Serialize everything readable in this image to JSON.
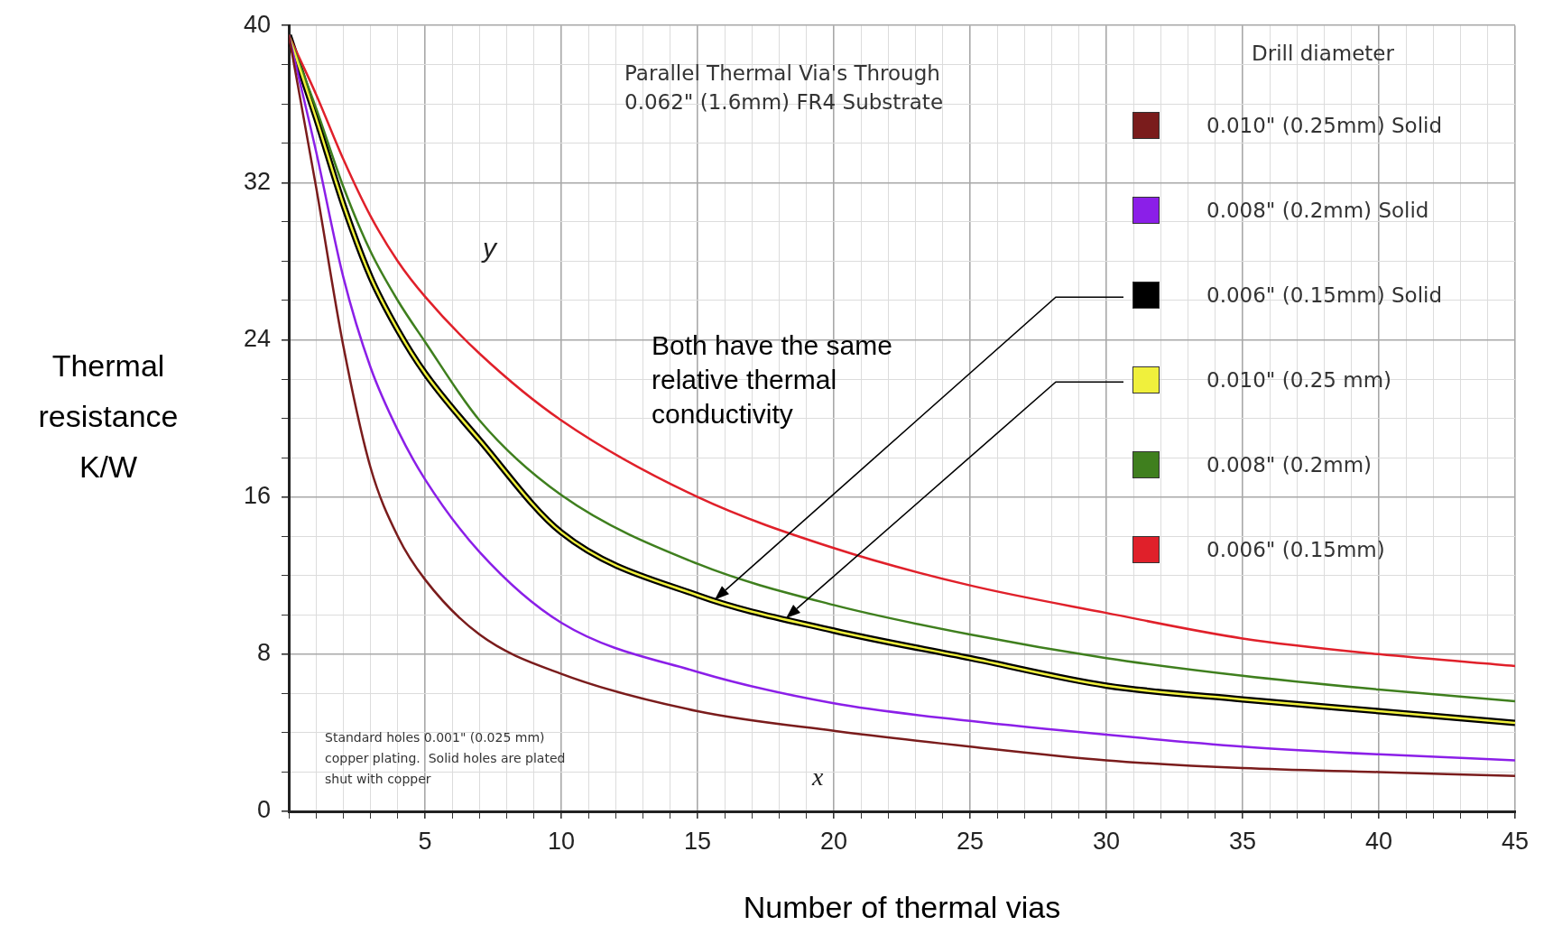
{
  "chart_data": {
    "type": "line",
    "title": "Parallel Thermal Via's Through\n0.062\" (1.6mm) FR4 Substrate",
    "xlabel": "Number of thermal vias",
    "ylabel": "Thermal resistance K/W",
    "legend_title": "Drill diameter",
    "x": [
      0,
      1,
      2,
      3,
      4,
      5,
      7,
      10,
      15,
      20,
      25,
      30,
      35,
      40,
      45
    ],
    "series": [
      {
        "name": "0.010\" (0.25mm) Solid",
        "color": "#7a1c1c",
        "values": [
          39.5,
          31.8,
          23.7,
          17.5,
          14.0,
          11.8,
          9.0,
          7.0,
          5.1,
          4.1,
          3.3,
          2.6,
          2.2,
          2.0,
          1.8
        ]
      },
      {
        "name": "0.008\" (0.2mm) Solid",
        "color": "#8b1fe8",
        "values": [
          39.5,
          33.6,
          27.2,
          22.6,
          19.4,
          16.9,
          13.2,
          9.6,
          7.1,
          5.5,
          4.6,
          3.9,
          3.3,
          2.9,
          2.6
        ]
      },
      {
        "name": "0.006\" (0.15mm) Solid",
        "color": "#000000",
        "values": [
          39.5,
          35.3,
          30.9,
          27.2,
          24.5,
          22.3,
          18.9,
          14.2,
          11.0,
          9.2,
          7.8,
          6.4,
          5.7,
          5.1,
          4.5
        ]
      },
      {
        "name": "0.010\" (0.25 mm)",
        "color": "#f0f03c",
        "values": [
          39.5,
          35.3,
          30.9,
          27.2,
          24.5,
          22.3,
          18.9,
          14.2,
          11.0,
          9.2,
          7.8,
          6.4,
          5.7,
          5.1,
          4.5
        ]
      },
      {
        "name": "0.008\" (0.2mm)",
        "color": "#3f7f1e",
        "values": [
          39.5,
          35.8,
          31.8,
          28.5,
          26.0,
          23.9,
          19.9,
          16.1,
          12.6,
          10.5,
          9.0,
          7.8,
          6.9,
          6.2,
          5.6
        ]
      },
      {
        "name": "0.006\" (0.15mm)",
        "color": "#e0202a",
        "values": [
          39.5,
          36.5,
          33.2,
          30.3,
          28.0,
          26.2,
          23.3,
          19.9,
          16.0,
          13.4,
          11.5,
          10.1,
          8.8,
          8.0,
          7.4
        ]
      }
    ],
    "annotations": [
      "Standard holes 0.001\" (0.025 mm)\ncopper plating.  Solid holes are plated\nshut with copper",
      "y",
      "x",
      "Both have the same\nrelative thermal\nconductivity"
    ],
    "xlim": [
      0,
      45
    ],
    "ylim": [
      0,
      40
    ],
    "xticks": [
      {
        "value": 0,
        "label": null
      },
      {
        "value": 1,
        "label": null
      },
      {
        "value": 2,
        "label": null
      },
      {
        "value": 3,
        "label": null
      },
      {
        "value": 4,
        "label": null
      },
      5,
      {
        "value": 6,
        "label": null
      },
      {
        "value": 7,
        "label": null
      },
      {
        "value": 8,
        "label": null
      },
      {
        "value": 9,
        "label": null
      },
      10,
      {
        "value": 11,
        "label": null
      },
      {
        "value": 12,
        "label": null
      },
      {
        "value": 13,
        "label": null
      },
      {
        "value": 14,
        "label": null
      },
      15,
      {
        "value": 16,
        "label": null
      },
      {
        "value": 17,
        "label": null
      },
      {
        "value": 18,
        "label": null
      },
      {
        "value": 19,
        "label": null
      },
      20,
      {
        "value": 21,
        "label": null
      },
      {
        "value": 22,
        "label": null
      },
      {
        "value": 23,
        "label": null
      },
      {
        "value": 24,
        "label": null
      },
      25,
      {
        "value": 26,
        "label": null
      },
      {
        "value": 27,
        "label": null
      },
      {
        "value": 28,
        "label": null
      },
      {
        "value": 29,
        "label": null
      },
      30,
      {
        "value": 31,
        "label": null
      },
      {
        "value": 32,
        "label": null
      },
      {
        "value": 33,
        "label": null
      },
      {
        "value": 34,
        "label": null
      },
      35,
      {
        "value": 36,
        "label": null
      },
      {
        "value": 37,
        "label": null
      },
      {
        "value": 38,
        "label": null
      },
      {
        "value": 39,
        "label": null
      },
      40,
      {
        "value": 41,
        "label": null
      },
      {
        "value": 42,
        "label": null
      },
      {
        "value": 43,
        "label": null
      },
      {
        "value": 44,
        "label": null
      },
      45
    ],
    "yticks": [
      0,
      {
        "value": 2,
        "label": null
      },
      {
        "value": 4,
        "label": null
      },
      {
        "value": 6,
        "label": null
      },
      8,
      {
        "value": 10,
        "label": null
      },
      {
        "value": 12,
        "label": null
      },
      {
        "value": 14,
        "label": null
      },
      16,
      {
        "value": 18,
        "label": null
      },
      {
        "value": 20,
        "label": null
      },
      {
        "value": 22,
        "label": null
      },
      24,
      {
        "value": 26,
        "label": null
      },
      {
        "value": 28,
        "label": null
      },
      {
        "value": 30,
        "label": null
      },
      32,
      {
        "value": 34,
        "label": null
      },
      {
        "value": 36,
        "label": null
      },
      {
        "value": 38,
        "label": null
      },
      40
    ],
    "grid": true,
    "legend": "top right",
    "marker": "none",
    "line_style": "solid"
  }
}
